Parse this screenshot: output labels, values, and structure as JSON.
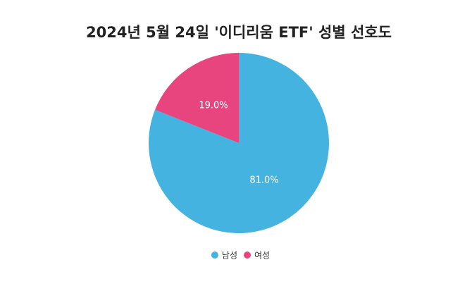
{
  "chart_data": {
    "type": "pie",
    "title": "2024년 5월 24일 '이디리움 ETF' 성별 선호도",
    "categories": [
      "남성",
      "여성"
    ],
    "values": [
      81.0,
      19.0
    ],
    "value_labels": [
      "81.0%",
      "19.0%"
    ],
    "colors": [
      "#45b3e0",
      "#e8457f"
    ],
    "legend": "bottom"
  }
}
